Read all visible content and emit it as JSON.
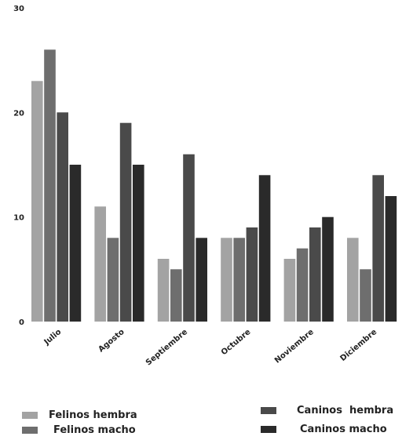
{
  "chart_data": {
    "type": "bar",
    "categories": [
      "Julio",
      "Agosto",
      "Septiembre",
      "Octubre",
      "Noviembre",
      "Diciembre"
    ],
    "series": [
      {
        "name": "Felinos hembra",
        "color": "#a3a3a3",
        "values": [
          23,
          11,
          6,
          8,
          6,
          8
        ]
      },
      {
        "name": "Felinos macho",
        "color": "#6e6e6e",
        "values": [
          26,
          8,
          5,
          8,
          7,
          5
        ]
      },
      {
        "name": "Caninos  hembra",
        "color": "#4a4a4a",
        "values": [
          20,
          19,
          16,
          9,
          9,
          14
        ]
      },
      {
        "name": "Caninos macho",
        "color": "#2a2a2a",
        "values": [
          15,
          15,
          8,
          14,
          10,
          12
        ]
      }
    ],
    "yticks": [
      "0",
      "10",
      "20",
      "30"
    ],
    "ylim": [
      0,
      30
    ],
    "grid": false,
    "legend_position": "bottom"
  }
}
